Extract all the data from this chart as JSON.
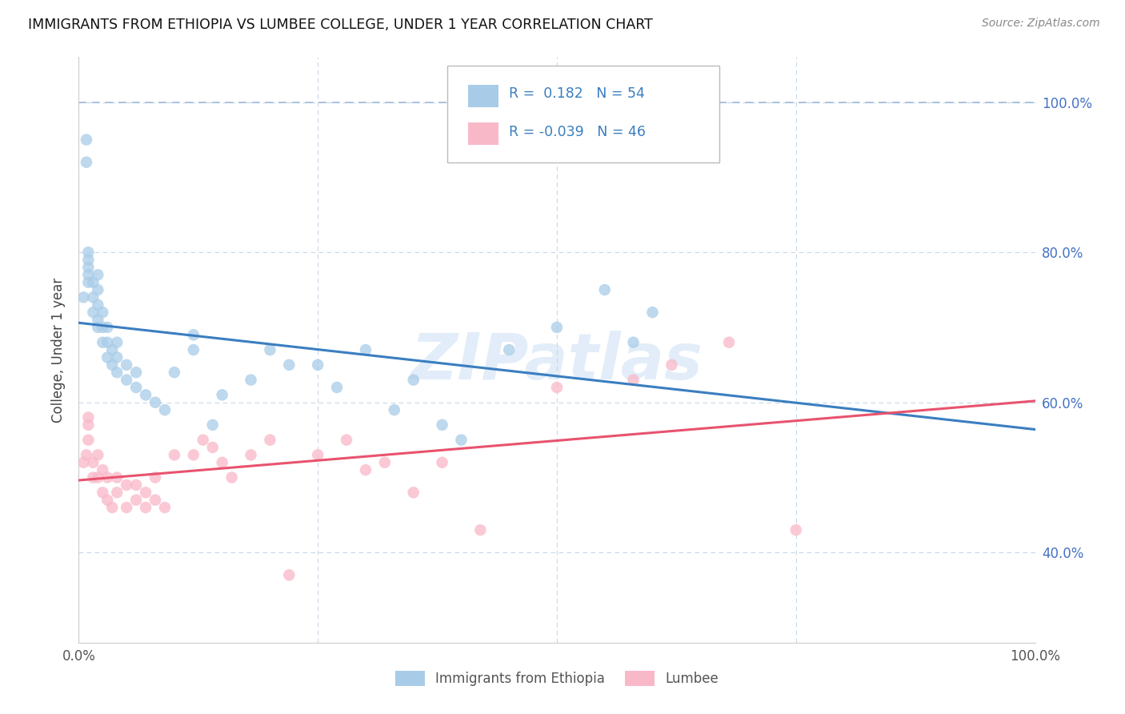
{
  "title": "IMMIGRANTS FROM ETHIOPIA VS LUMBEE COLLEGE, UNDER 1 YEAR CORRELATION CHART",
  "source_text": "Source: ZipAtlas.com",
  "ylabel": "College, Under 1 year",
  "legend_label1": "Immigrants from Ethiopia",
  "legend_label2": "Lumbee",
  "xlim": [
    0.0,
    1.0
  ],
  "ylim": [
    0.28,
    1.06
  ],
  "color_ethiopia": "#a8cce8",
  "color_lumbee": "#f9b8c8",
  "line_color_ethiopia": "#3a7ec0",
  "line_color_lumbee": "#e8536e",
  "dash_color": "#a0b8d8",
  "background_color": "#ffffff",
  "watermark_text": "ZIPatlas",
  "grid_color": "#c8d8e8",
  "ethiopia_x": [
    0.005,
    0.008,
    0.008,
    0.01,
    0.01,
    0.01,
    0.01,
    0.01,
    0.015,
    0.015,
    0.015,
    0.02,
    0.02,
    0.02,
    0.02,
    0.02,
    0.025,
    0.025,
    0.025,
    0.03,
    0.03,
    0.03,
    0.035,
    0.035,
    0.04,
    0.04,
    0.04,
    0.05,
    0.05,
    0.06,
    0.06,
    0.07,
    0.08,
    0.09,
    0.1,
    0.12,
    0.12,
    0.14,
    0.15,
    0.18,
    0.2,
    0.22,
    0.25,
    0.27,
    0.3,
    0.33,
    0.35,
    0.38,
    0.4,
    0.45,
    0.5,
    0.55,
    0.58,
    0.6
  ],
  "ethiopia_y": [
    0.74,
    0.95,
    0.92,
    0.76,
    0.77,
    0.78,
    0.79,
    0.8,
    0.72,
    0.74,
    0.76,
    0.7,
    0.71,
    0.73,
    0.75,
    0.77,
    0.68,
    0.7,
    0.72,
    0.66,
    0.68,
    0.7,
    0.65,
    0.67,
    0.64,
    0.66,
    0.68,
    0.63,
    0.65,
    0.62,
    0.64,
    0.61,
    0.6,
    0.59,
    0.64,
    0.67,
    0.69,
    0.57,
    0.61,
    0.63,
    0.67,
    0.65,
    0.65,
    0.62,
    0.67,
    0.59,
    0.63,
    0.57,
    0.55,
    0.67,
    0.7,
    0.75,
    0.68,
    0.72
  ],
  "lumbee_x": [
    0.005,
    0.008,
    0.01,
    0.01,
    0.01,
    0.015,
    0.015,
    0.02,
    0.02,
    0.025,
    0.025,
    0.03,
    0.03,
    0.035,
    0.04,
    0.04,
    0.05,
    0.05,
    0.06,
    0.06,
    0.07,
    0.07,
    0.08,
    0.08,
    0.09,
    0.1,
    0.12,
    0.13,
    0.14,
    0.15,
    0.16,
    0.18,
    0.2,
    0.22,
    0.25,
    0.28,
    0.3,
    0.32,
    0.35,
    0.38,
    0.42,
    0.5,
    0.58,
    0.62,
    0.68,
    0.75
  ],
  "lumbee_y": [
    0.52,
    0.53,
    0.55,
    0.57,
    0.58,
    0.5,
    0.52,
    0.5,
    0.53,
    0.48,
    0.51,
    0.47,
    0.5,
    0.46,
    0.48,
    0.5,
    0.46,
    0.49,
    0.47,
    0.49,
    0.46,
    0.48,
    0.47,
    0.5,
    0.46,
    0.53,
    0.53,
    0.55,
    0.54,
    0.52,
    0.5,
    0.53,
    0.55,
    0.37,
    0.53,
    0.55,
    0.51,
    0.52,
    0.48,
    0.52,
    0.43,
    0.62,
    0.63,
    0.65,
    0.68,
    0.43
  ]
}
